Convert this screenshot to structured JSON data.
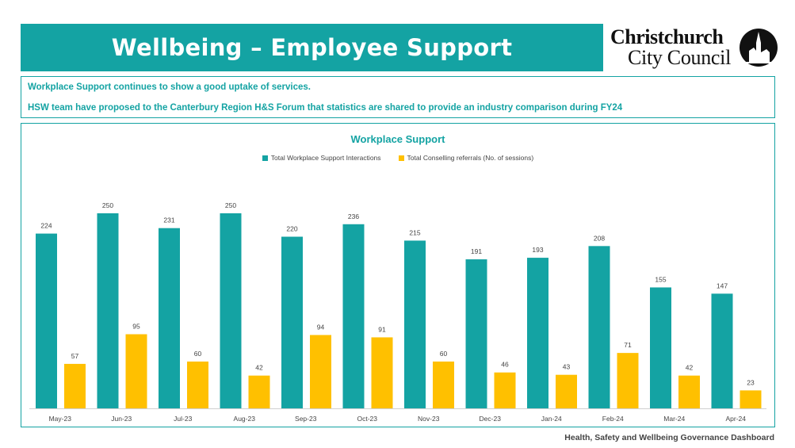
{
  "header": {
    "title": "Wellbeing – Employee Support",
    "logo_line1": "Christchurch",
    "logo_line2": "City Council"
  },
  "info": {
    "line1": "Workplace Support continues to show a good uptake of services.",
    "line2": "HSW team have proposed to the Canterbury Region H&S Forum that statistics are shared to provide an industry comparison during  FY24"
  },
  "footer": {
    "text": "Health, Safety and Wellbeing Governance Dashboard"
  },
  "colors": {
    "teal": "#14a3a3",
    "gold": "#ffc000"
  },
  "chart_data": {
    "type": "bar",
    "title": "Workplace Support",
    "categories": [
      "May-23",
      "Jun-23",
      "Jul-23",
      "Aug-23",
      "Sep-23",
      "Oct-23",
      "Nov-23",
      "Dec-23",
      "Jan-24",
      "Feb-24",
      "Mar-24",
      "Apr-24"
    ],
    "series": [
      {
        "name": "Total Workplace Support Interactions",
        "color": "#14a3a3",
        "values": [
          224,
          250,
          231,
          250,
          220,
          236,
          215,
          191,
          193,
          208,
          155,
          147
        ]
      },
      {
        "name": "Total Conselling referrals (No. of sessions)",
        "color": "#ffc000",
        "values": [
          57,
          95,
          60,
          42,
          94,
          91,
          60,
          46,
          43,
          71,
          42,
          23
        ]
      }
    ],
    "ylim": [
      0,
      250
    ],
    "grid": false,
    "legend": "top"
  }
}
